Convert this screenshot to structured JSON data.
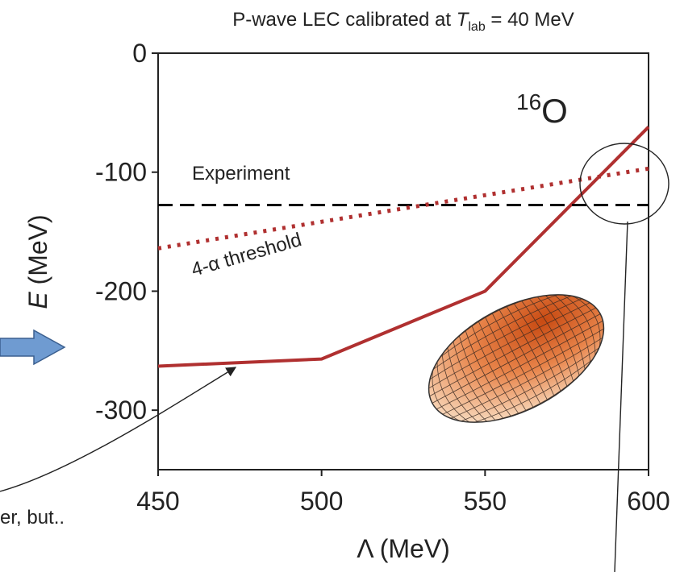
{
  "chart_data": {
    "type": "line",
    "title": {
      "prefix": "P-wave LEC calibrated at ",
      "var": "T",
      "sub": "lab",
      "suffix": " = 40 MeV"
    },
    "nucleus": {
      "mass": "16",
      "symbol": "O"
    },
    "xlabel": {
      "symbol": "Λ",
      "unit": " (MeV)"
    },
    "ylabel": {
      "symbol": "E",
      "unit": " (MeV)"
    },
    "xlim": [
      450,
      600
    ],
    "ylim": [
      -350,
      0
    ],
    "xticks": [
      "450",
      "500",
      "550",
      "600"
    ],
    "yticks": [
      "0",
      "-100",
      "-200",
      "-300"
    ],
    "series": [
      {
        "name": "",
        "x": [
          450,
          500,
          550,
          600
        ],
        "y": [
          -263,
          -257,
          -200,
          -62
        ]
      },
      {
        "name": "Experiment",
        "x": [
          450,
          600
        ],
        "y": [
          -127.6,
          -127.6
        ]
      },
      {
        "name": "4-α threshold",
        "x": [
          450,
          600
        ],
        "y": [
          -164,
          -97
        ]
      }
    ],
    "labels": {
      "experiment": "Experiment",
      "threshold": "4-α threshold"
    },
    "colors": {
      "line": "#b03030",
      "threshold": "#b03030",
      "experiment": "#000000",
      "arrow_fill": "#6f9bd1",
      "arrow_stroke": "#3b5f8f"
    }
  },
  "side_note": "er, but.."
}
